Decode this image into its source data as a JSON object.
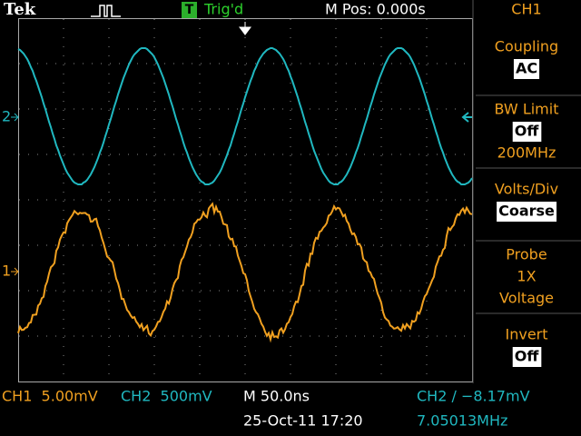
{
  "header": {
    "brand": "Tek",
    "trigger_badge": "T",
    "trigger_status": "Trig'd",
    "position": "M Pos: 0.000s",
    "menu_title": "CH1"
  },
  "channel_markers": {
    "ch2": "2",
    "ch1": "1"
  },
  "menu": [
    {
      "label": "Coupling",
      "value": "AC"
    },
    {
      "label": "BW Limit",
      "value": "Off",
      "extra": "200MHz"
    },
    {
      "label": "Volts/Div",
      "value": "Coarse"
    },
    {
      "label": "Probe",
      "value": "1X",
      "extra": "Voltage"
    },
    {
      "label": "Invert",
      "value": "Off"
    }
  ],
  "footer": {
    "ch1_scale": "CH1  5.00mV",
    "ch2_scale": "CH2  500mV",
    "timebase": "M 50.0ns",
    "trigger_level": "CH2 ∕ −8.17mV",
    "timestamp": "25-Oct-11 17:20",
    "frequency": "7.05013MHz"
  }
}
